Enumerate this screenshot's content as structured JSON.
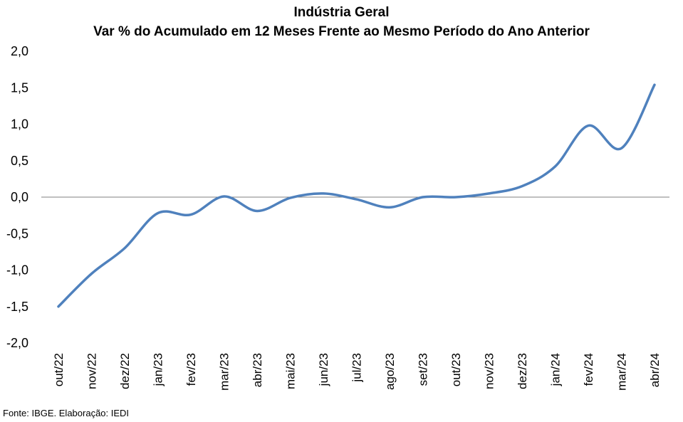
{
  "chart_data": {
    "type": "line",
    "title": "Indústria Geral",
    "subtitle": "Var % do Acumulado em 12 Meses Frente ao Mesmo Período do Ano Anterior",
    "xlabel": "",
    "ylabel": "",
    "categories": [
      "out/22",
      "nov/22",
      "dez/22",
      "jan/23",
      "fev/23",
      "mar/23",
      "abr/23",
      "mai/23",
      "jun/23",
      "jul/23",
      "ago/23",
      "set/23",
      "out/23",
      "nov/23",
      "dez/23",
      "jan/24",
      "fev/24",
      "mar/24",
      "abr/24"
    ],
    "series": [
      {
        "values": [
          -1.5,
          -1.05,
          -0.7,
          -0.22,
          -0.24,
          0.01,
          -0.19,
          -0.01,
          0.05,
          -0.03,
          -0.14,
          0.0,
          0.0,
          0.05,
          0.15,
          0.42,
          0.98,
          0.67,
          1.54
        ]
      }
    ],
    "ylim": [
      -2.0,
      2.0
    ],
    "yticks": [
      "2,0",
      "1,5",
      "1,0",
      "0,5",
      "0,0",
      "-0,5",
      "-1,0",
      "-1,5",
      "-2,0"
    ],
    "ytick_values": [
      2.0,
      1.5,
      1.0,
      0.5,
      0.0,
      -0.5,
      -1.0,
      -1.5,
      -2.0
    ],
    "grid": false,
    "legend": "none",
    "line_color": "#4f81bd",
    "zero_line_color": "#808080"
  },
  "source": "Fonte: IBGE. Elaboração: IEDI"
}
